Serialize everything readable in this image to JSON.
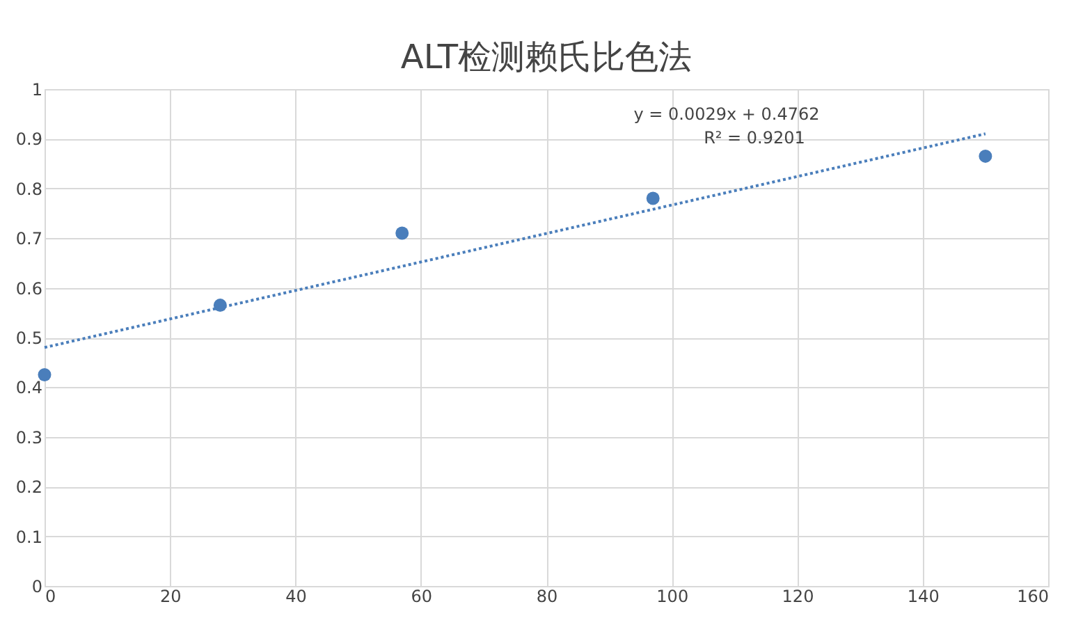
{
  "chart_data": {
    "type": "scatter",
    "title": "ALT检测赖氏比色法",
    "series": [
      {
        "type": "scatter",
        "color": "#4a7ebb",
        "x": [
          0,
          28,
          57,
          97,
          150
        ],
        "values": [
          0.425,
          0.565,
          0.71,
          0.78,
          0.865
        ],
        "marker": "circle"
      },
      {
        "type": "line",
        "color": "#4a7ebb",
        "x": [
          0,
          150
        ],
        "values": [
          0.48,
          0.91
        ],
        "line_style": "dotted"
      }
    ],
    "annotations": [
      "y = 0.0029x + 0.4762",
      "R² = 0.9201"
    ],
    "xlim": [
      0,
      160
    ],
    "xticks": [
      0,
      20,
      40,
      60,
      80,
      100,
      120,
      140,
      160
    ],
    "ylim": [
      0,
      1
    ],
    "yticks": [
      0,
      0.1,
      0.2,
      0.3,
      0.4,
      0.5,
      0.6,
      0.7,
      0.8,
      0.9,
      1
    ],
    "grid": true
  }
}
